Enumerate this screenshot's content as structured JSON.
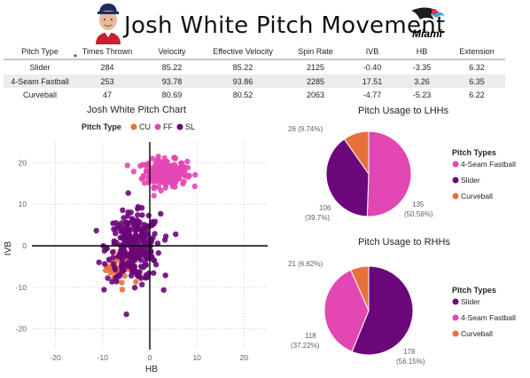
{
  "header": {
    "title": "Josh White Pitch Movement",
    "team_logo_text": "Miami"
  },
  "colors": {
    "CU": "#e8703a",
    "FF": "#e347b4",
    "SL": "#6b077a",
    "grid": "#d9d9d9"
  },
  "table": {
    "columns": [
      "Pitch Type",
      "Times Thrown",
      "Velocity",
      "Effective Velocity",
      "Spin Rate",
      "IVB",
      "HB",
      "Extension"
    ],
    "rows": [
      [
        "Slider",
        "284",
        "85.22",
        "85.22",
        "2125",
        "-0.40",
        "-3.35",
        "6.32"
      ],
      [
        "4-Seam Fastball",
        "253",
        "93.78",
        "93.86",
        "2285",
        "17.51",
        "3.26",
        "6.35"
      ],
      [
        "Curveball",
        "47",
        "80.69",
        "80.52",
        "2063",
        "-4.77",
        "-5.23",
        "6.22"
      ]
    ]
  },
  "chart_data": [
    {
      "type": "scatter",
      "title": "Josh White Pitch Chart",
      "xlabel": "HB",
      "ylabel": "IVB",
      "xlim": [
        -25,
        25
      ],
      "ylim": [
        -25,
        25
      ],
      "xticks": [
        -20,
        -10,
        0,
        10,
        20
      ],
      "yticks": [
        -20,
        -10,
        0,
        10,
        20
      ],
      "grid": true,
      "legend": {
        "title": "Pitch Type",
        "placement": "top-left",
        "entries": [
          "CU",
          "FF",
          "SL"
        ]
      },
      "series": [
        {
          "name": "CU",
          "n": 47,
          "center": [
            -5.23,
            -4.77
          ],
          "spread": [
            2.0,
            2.2
          ]
        },
        {
          "name": "FF",
          "n": 253,
          "center": [
            3.26,
            17.51
          ],
          "spread": [
            2.3,
            1.6
          ]
        },
        {
          "name": "SL",
          "n": 284,
          "center": [
            -3.35,
            -0.4
          ],
          "spread": [
            2.8,
            4.0
          ]
        }
      ]
    },
    {
      "type": "pie",
      "title": "Pitch Usage to LHHs",
      "legend_title": "Pitch Types",
      "slices": [
        {
          "name": "4-Seam Fastball",
          "value": 135,
          "label_value": "135",
          "label_pct": "(50.56%)"
        },
        {
          "name": "Slider",
          "value": 106,
          "label_value": "106",
          "label_pct": "(39.7%)"
        },
        {
          "name": "Curveball",
          "value": 26,
          "label_value": "26 (9.74%)",
          "label_pct": ""
        }
      ]
    },
    {
      "type": "pie",
      "title": "Pitch Usage to RHHs",
      "legend_title": "Pitch Types",
      "slices": [
        {
          "name": "Slider",
          "value": 178,
          "label_value": "178",
          "label_pct": "(56.15%)"
        },
        {
          "name": "4-Seam Fastball",
          "value": 118,
          "label_value": "118",
          "label_pct": "(37.22%)"
        },
        {
          "name": "Curveball",
          "value": 21,
          "label_value": "21 (6.62%)",
          "label_pct": ""
        }
      ]
    }
  ]
}
